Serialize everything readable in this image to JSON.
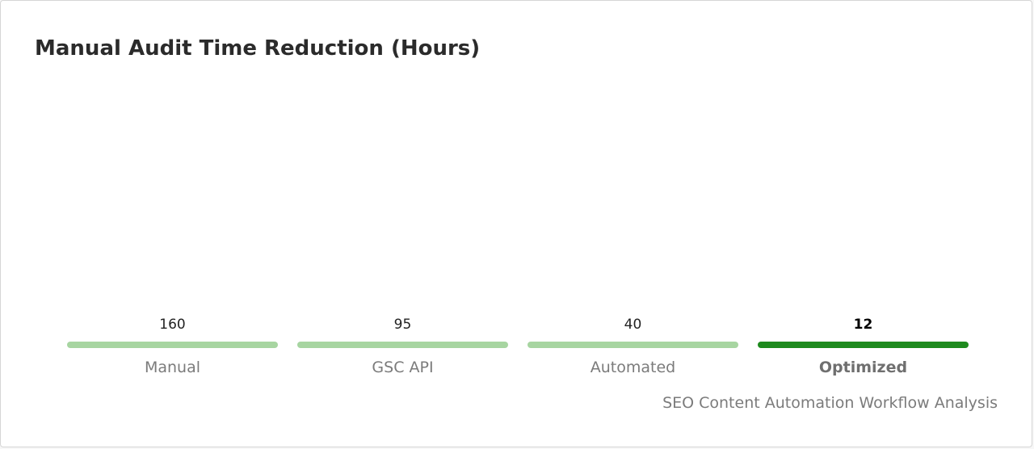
{
  "chart_data": {
    "type": "bar",
    "title": "Manual Audit Time Reduction (Hours)",
    "caption": "SEO Content Automation Workflow Analysis",
    "categories": [
      "Manual",
      "GSC API",
      "Automated",
      "Optimized"
    ],
    "values": [
      160,
      95,
      40,
      12
    ],
    "highlight_index": 3,
    "colors": {
      "bar": "#a7d5a1",
      "highlight": "#1e8a1e"
    },
    "xlabel": "",
    "ylabel": "",
    "grid": false
  }
}
